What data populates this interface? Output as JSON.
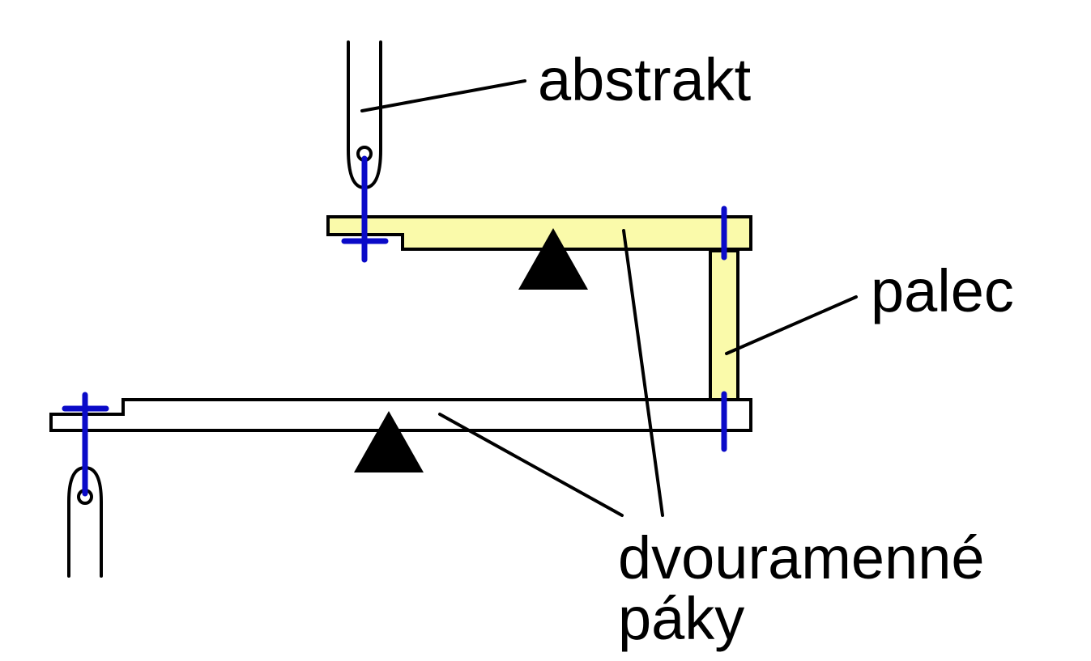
{
  "labels": {
    "abstrakt": "abstrakt",
    "palec": "palec",
    "levers_line1": "dvouramenné",
    "levers_line2": "páky"
  },
  "colors": {
    "lever_fill": "#fafaaa",
    "pivot": "#000000",
    "pin": "#0a0ac8",
    "outline": "#000000",
    "background": "#ffffff"
  }
}
